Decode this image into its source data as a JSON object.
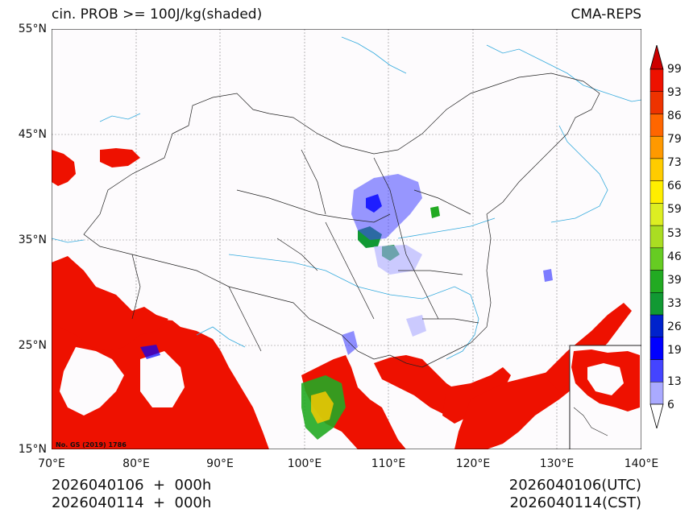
{
  "title": {
    "left": "cin. PROB >= 100J/kg(shaded)",
    "right": "CMA-REPS"
  },
  "map": {
    "lat_range": [
      15,
      55
    ],
    "lon_range": [
      70,
      140
    ],
    "lat_ticks": [
      "55°N",
      "45°N",
      "35°N",
      "25°N",
      "15°N"
    ],
    "lon_ticks": [
      "70°E",
      "80°E",
      "90°E",
      "100°E",
      "110°E",
      "120°E",
      "130°E",
      "140°E"
    ],
    "gs_note": "No. GS (2019) 1786",
    "colors": {
      "high_prob": "#ee1100",
      "mid_prob": "#22aa22",
      "low_prob": "#3333ee",
      "border": "#222222",
      "river": "#33aadd",
      "grid": "#888888"
    }
  },
  "colorbar": {
    "labels": [
      "99",
      "93",
      "86",
      "79",
      "73",
      "66",
      "59",
      "53",
      "46",
      "39",
      "33",
      "26",
      "19",
      "13",
      "6"
    ],
    "colors": [
      "#ee1100",
      "#ee3300",
      "#ff6600",
      "#ff9900",
      "#ffcc00",
      "#ffee00",
      "#ddee22",
      "#aadd22",
      "#66cc22",
      "#22aa22",
      "#119933",
      "#0022cc",
      "#0000ff",
      "#4444ff",
      "#aaaaff"
    ],
    "top_arrow_color": "#cc0000",
    "bottom_arrow_color": "#ffffff"
  },
  "footer": {
    "left_line1": "2026040106  +  000h",
    "left_line2": "2026040114  +  000h",
    "right_line1": "2026040106(UTC)",
    "right_line2": "2026040114(CST)"
  }
}
